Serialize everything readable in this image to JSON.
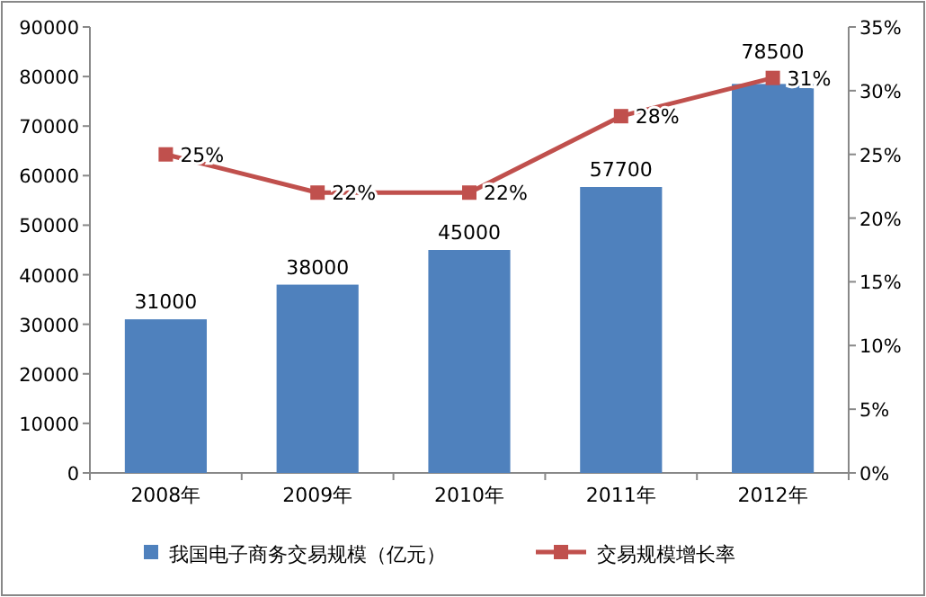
{
  "chart_data": {
    "type": "bar",
    "categories": [
      "2008年",
      "2009年",
      "2010年",
      "2011年",
      "2012年"
    ],
    "series": [
      {
        "name": "我国电子商务交易规模（亿元）",
        "color": "#4f81bd",
        "values": [
          31000,
          38000,
          45000,
          57700,
          78500
        ],
        "value_labels": [
          "31000",
          "38000",
          "45000",
          "57700",
          "78500"
        ]
      },
      {
        "name": "交易规模增长率",
        "type": "line",
        "axis": "y2",
        "color": "#c0504d",
        "marker": "square",
        "line_style": "solid",
        "values": [
          25,
          22,
          22,
          28,
          31
        ],
        "value_labels": [
          "25%",
          "22%",
          "22%",
          "28%",
          "31%"
        ]
      }
    ],
    "ylim": [
      0,
      90000
    ],
    "yticks": [
      0,
      10000,
      20000,
      30000,
      40000,
      50000,
      60000,
      70000,
      80000,
      90000
    ],
    "y2lim": [
      0,
      35
    ],
    "y2ticks": [
      {
        "value": 0,
        "label": "0%"
      },
      {
        "value": 5,
        "label": "5%"
      },
      {
        "value": 10,
        "label": "10%"
      },
      {
        "value": 15,
        "label": "15%"
      },
      {
        "value": 20,
        "label": "20%"
      },
      {
        "value": 25,
        "label": "25%"
      },
      {
        "value": 30,
        "label": "30%"
      },
      {
        "value": 35,
        "label": "35%"
      }
    ],
    "grid": false,
    "legend": "bottom"
  }
}
